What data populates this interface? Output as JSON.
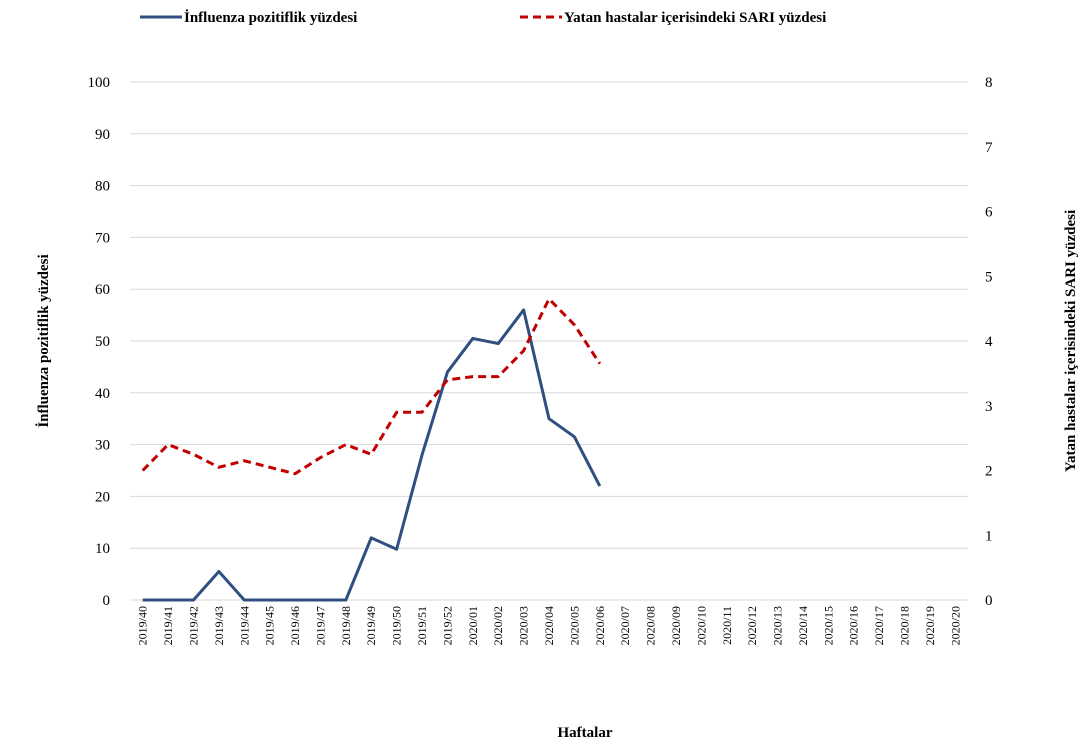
{
  "chart_data": {
    "type": "line",
    "x_label": "Haftalar",
    "y_label": "İnfluenza pozitiflik yüzdesi",
    "y2_label": "Yatan hastalar içerisindeki SARI yüzdesi",
    "categories": [
      "2019/40",
      "2019/41",
      "2019/42",
      "2019/43",
      "2019/44",
      "2019/45",
      "2019/46",
      "2019/47",
      "2019/48",
      "2019/49",
      "2019/50",
      "2019/51",
      "2019/52",
      "2020/01",
      "2020/02",
      "2020/03",
      "2020/04",
      "2020/05",
      "2020/06",
      "2020/07",
      "2020/08",
      "2020/09",
      "2020/10",
      "2020/11",
      "2020/12",
      "2020/13",
      "2020/14",
      "2020/15",
      "2020/16",
      "2020/17",
      "2020/18",
      "2020/19",
      "2020/20"
    ],
    "series": [
      {
        "name": "İnfluenza pozitiflik yüzdesi",
        "color": "#2e4f7f",
        "dash": "solid",
        "values": [
          0,
          0,
          0,
          5.5,
          0,
          0,
          0,
          0,
          0,
          12,
          9.8,
          28,
          44,
          50.5,
          49.5,
          56,
          35,
          31.5,
          22,
          null,
          null,
          null,
          null,
          null,
          null,
          null,
          null,
          null,
          null,
          null,
          null,
          null,
          null
        ]
      },
      {
        "name": "Yatan hastalar içerisindeki SARI yüzdesi",
        "color": "#c00000",
        "dash": "dashed",
        "axis": "y2",
        "values": [
          2.0,
          2.4,
          2.25,
          2.05,
          2.15,
          2.05,
          1.95,
          2.2,
          2.4,
          2.25,
          2.9,
          2.9,
          3.4,
          3.45,
          3.45,
          3.85,
          4.65,
          4.25,
          3.65,
          null,
          null,
          null,
          null,
          null,
          null,
          null,
          null,
          null,
          null,
          null,
          null,
          null,
          null
        ]
      }
    ],
    "ylim": [
      0,
      100
    ],
    "yticks": [
      0,
      10,
      20,
      30,
      40,
      50,
      60,
      70,
      80,
      90,
      100
    ],
    "y2lim": [
      0,
      8
    ],
    "y2ticks": [
      0,
      1,
      2,
      3,
      4,
      5,
      6,
      7,
      8
    ],
    "grid": true,
    "legend": "top"
  }
}
